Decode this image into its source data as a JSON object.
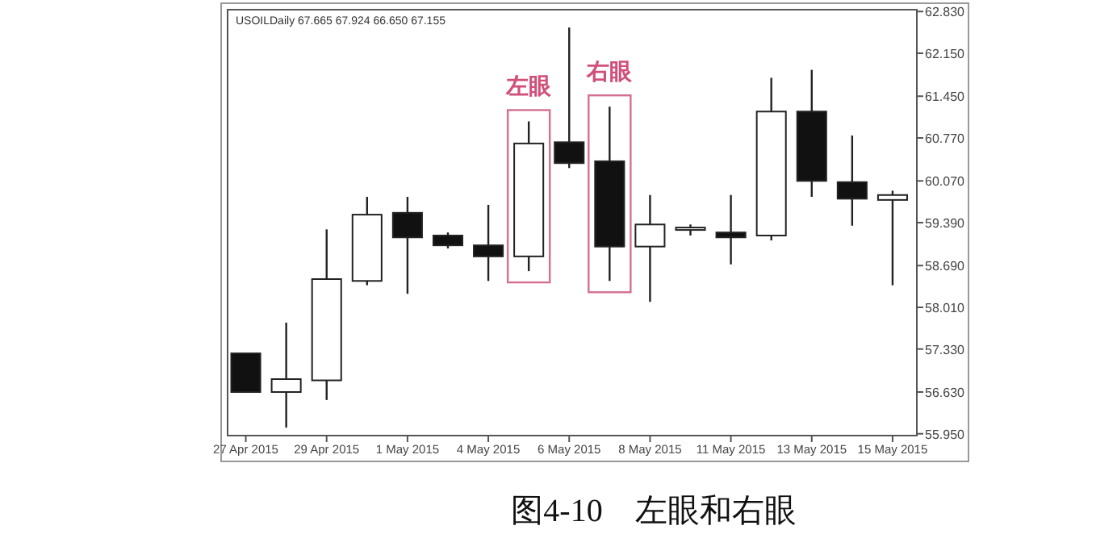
{
  "chart_data": {
    "type": "candlestick",
    "title": "图4-10　左眼和右眼",
    "annotations": [
      "USOILDaily 67.665 67.924 66.650 67.155",
      "左眼",
      "右眼"
    ],
    "categories": [
      "27 Apr 2015",
      null,
      "29 Apr 2015",
      null,
      "1 May 2015",
      null,
      "4 May 2015",
      null,
      "6 May 2015",
      null,
      "8 May 2015",
      null,
      "11 May 2015",
      null,
      "13 May 2015",
      null,
      "15 May 2015"
    ],
    "ohlc": [
      [
        57.26,
        57.26,
        56.63,
        56.63
      ],
      [
        56.63,
        57.76,
        56.05,
        56.84
      ],
      [
        56.82,
        59.28,
        56.5,
        58.47
      ],
      [
        58.44,
        59.81,
        58.37,
        59.52
      ],
      [
        59.55,
        59.81,
        58.23,
        59.15
      ],
      [
        59.18,
        59.23,
        58.97,
        59.02
      ],
      [
        59.02,
        59.68,
        58.44,
        58.84
      ],
      [
        58.84,
        61.04,
        58.6,
        60.68
      ],
      [
        60.7,
        62.57,
        60.28,
        60.36
      ],
      [
        60.39,
        61.28,
        58.44,
        59.0
      ],
      [
        59.0,
        59.84,
        58.1,
        59.36
      ],
      [
        59.28,
        59.36,
        59.18,
        59.31
      ],
      [
        59.23,
        59.84,
        58.71,
        59.15
      ],
      [
        59.18,
        61.75,
        59.1,
        61.2
      ],
      [
        61.2,
        61.88,
        59.81,
        60.07
      ],
      [
        60.05,
        60.81,
        59.34,
        59.78
      ],
      [
        59.76,
        59.91,
        58.37,
        59.84
      ]
    ],
    "ylim": [
      55.92,
      62.86
    ],
    "yticks": [
      {
        "value": 62.83,
        "label": "62.830"
      },
      {
        "value": 62.15,
        "label": "62.150"
      },
      {
        "value": 61.45,
        "label": "61.450"
      },
      {
        "value": 60.77,
        "label": "60.770"
      },
      {
        "value": 60.07,
        "label": "60.070"
      },
      {
        "value": 59.39,
        "label": "59.390"
      },
      {
        "value": 58.69,
        "label": "58.690"
      },
      {
        "value": 58.01,
        "label": "58.010"
      },
      {
        "value": 57.33,
        "label": "57.330"
      },
      {
        "value": 56.63,
        "label": "56.630"
      },
      {
        "value": 55.95,
        "label": "55.950"
      }
    ],
    "tick_labels": true
  }
}
